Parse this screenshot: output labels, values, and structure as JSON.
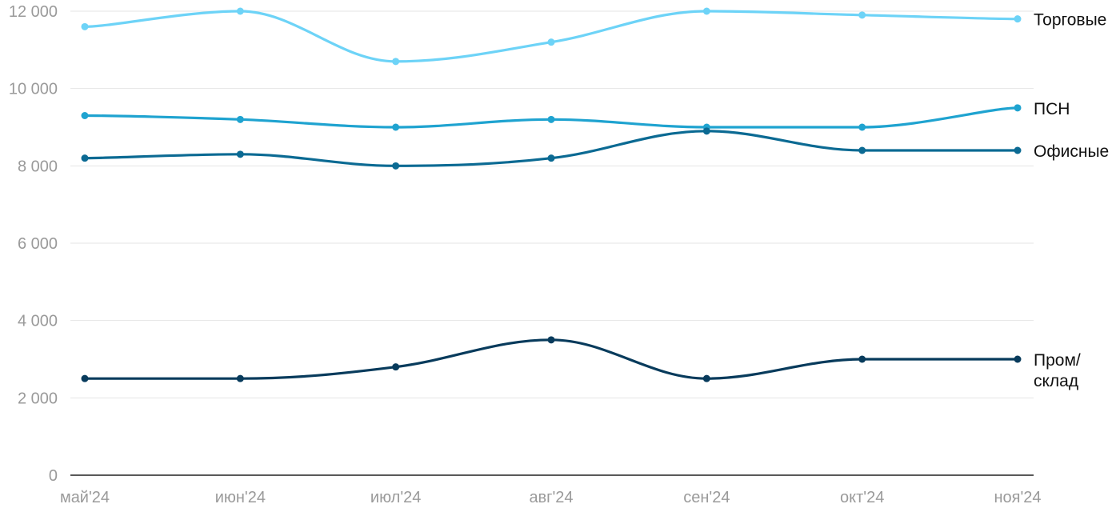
{
  "chart_data": {
    "type": "line",
    "title": "",
    "xlabel": "",
    "ylabel": "",
    "categories": [
      "май'24",
      "июн'24",
      "июл'24",
      "авг'24",
      "сен'24",
      "окт'24",
      "ноя'24"
    ],
    "y_ticks": [
      "0",
      "2 000",
      "4 000",
      "6 000",
      "8 000",
      "10 000",
      "12 000"
    ],
    "ylim": [
      0,
      12000
    ],
    "grid": true,
    "legend": "inline-right",
    "series": [
      {
        "name": "Торговые",
        "label_lines": [
          "Торговые"
        ],
        "color": "#6dd3f7",
        "values": [
          11600,
          12000,
          10700,
          11200,
          12000,
          11900,
          11800
        ]
      },
      {
        "name": "ПСН",
        "label_lines": [
          "ПСН"
        ],
        "color": "#1fa3d0",
        "values": [
          9300,
          9200,
          9000,
          9200,
          9000,
          9000,
          9500
        ]
      },
      {
        "name": "Офисные",
        "label_lines": [
          "Офисные"
        ],
        "color": "#0b6a93",
        "values": [
          8200,
          8300,
          8000,
          8200,
          8900,
          8400,
          8400
        ]
      },
      {
        "name": "Пром/склад",
        "label_lines": [
          "Пром/",
          "склад"
        ],
        "color": "#083b5c",
        "values": [
          2500,
          2500,
          2800,
          3500,
          2500,
          3000,
          3000
        ]
      }
    ]
  }
}
